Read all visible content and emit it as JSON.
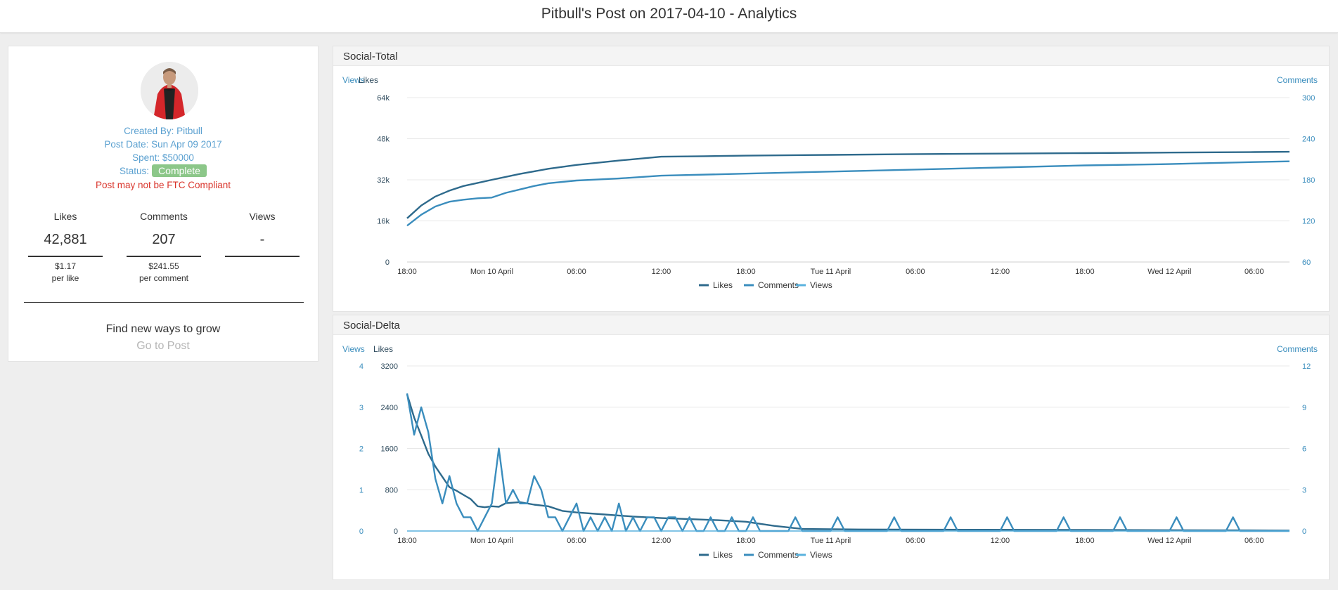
{
  "header": {
    "title": "Pitbull's Post on 2017-04-10 - Analytics"
  },
  "profile": {
    "created_by": "Created By: Pitbull",
    "post_date": "Post Date: Sun Apr 09 2017",
    "spent": "Spent: $50000",
    "status_label": "Status:",
    "status_value": "Complete",
    "ftc_warning": "Post may not be FTC Compliant"
  },
  "stats": [
    {
      "label": "Likes",
      "value": "42,881",
      "cost": "$1.17",
      "per": "per like"
    },
    {
      "label": "Comments",
      "value": "207",
      "cost": "$241.55",
      "per": "per comment"
    },
    {
      "label": "Views",
      "value": "-",
      "cost": "",
      "per": ""
    }
  ],
  "grow": {
    "heading": "Find new ways to grow",
    "link": "Go to Post"
  },
  "colors": {
    "likes": "#2e6a8c",
    "comments": "#3a8dbd",
    "views": "#5ab2de",
    "complete": "#8cc789",
    "warning": "#d9342b"
  },
  "chart_data": [
    {
      "type": "line",
      "title": "Social-Total",
      "axis_titles": {
        "left_primary": "Views",
        "left_secondary": "Likes",
        "right": "Comments"
      },
      "x_ticks": [
        "18:00",
        "Mon 10 April",
        "06:00",
        "12:00",
        "18:00",
        "Tue 11 April",
        "06:00",
        "12:00",
        "18:00",
        "Wed 12 April",
        "06:00"
      ],
      "x_tick_hours": [
        0,
        6,
        12,
        18,
        24,
        30,
        36,
        42,
        48,
        54,
        60
      ],
      "likes_ticks": [
        "0",
        "16k",
        "32k",
        "48k",
        "64k"
      ],
      "likes_range": [
        0,
        64000
      ],
      "comments_ticks": [
        "60",
        "120",
        "180",
        "240",
        "300"
      ],
      "comments_range": [
        60,
        300
      ],
      "legend": [
        "Likes",
        "Comments",
        "Views"
      ],
      "legend_position": "bottom",
      "series": [
        {
          "name": "Likes",
          "axis": "likes",
          "x": [
            0,
            1,
            2,
            3,
            4,
            5,
            6,
            8,
            10,
            12,
            15,
            18,
            21,
            24,
            30,
            36,
            42,
            48,
            54,
            60,
            62.5
          ],
          "values": [
            17000,
            22000,
            25500,
            27800,
            29600,
            30800,
            32000,
            34300,
            36300,
            37800,
            39500,
            41000,
            41200,
            41400,
            41700,
            42000,
            42200,
            42400,
            42600,
            42800,
            42900
          ]
        },
        {
          "name": "Comments",
          "axis": "comments",
          "x": [
            0,
            1,
            2,
            3,
            4,
            5,
            6,
            7,
            8,
            9,
            10,
            12,
            15,
            18,
            24,
            30,
            36,
            42,
            48,
            54,
            60,
            62.5
          ],
          "values": [
            113,
            129,
            141,
            148,
            151,
            153,
            154,
            161,
            166,
            171,
            175,
            179,
            182,
            186,
            189,
            192,
            195,
            198,
            201,
            203,
            206,
            207
          ]
        },
        {
          "name": "Views",
          "axis": "views",
          "x": [],
          "values": []
        }
      ]
    },
    {
      "type": "line",
      "title": "Social-Delta",
      "axis_titles": {
        "left_primary": "Views",
        "left_secondary": "Likes",
        "right": "Comments"
      },
      "x_ticks": [
        "18:00",
        "Mon 10 April",
        "06:00",
        "12:00",
        "18:00",
        "Tue 11 April",
        "06:00",
        "12:00",
        "18:00",
        "Wed 12 April",
        "06:00"
      ],
      "x_tick_hours": [
        0,
        6,
        12,
        18,
        24,
        30,
        36,
        42,
        48,
        54,
        60
      ],
      "views_ticks": [
        "0",
        "1",
        "2",
        "3",
        "4"
      ],
      "views_range": [
        0,
        4
      ],
      "likes_ticks": [
        "0",
        "800",
        "1600",
        "2400",
        "3200"
      ],
      "likes_range": [
        0,
        3200
      ],
      "comments_ticks": [
        "0",
        "3",
        "6",
        "9",
        "12"
      ],
      "comments_range": [
        0,
        12
      ],
      "legend": [
        "Likes",
        "Comments",
        "Views"
      ],
      "legend_position": "bottom",
      "series": [
        {
          "name": "Likes",
          "axis": "likes",
          "x": [
            0,
            0.5,
            1,
            1.5,
            2,
            2.5,
            3,
            3.5,
            4,
            4.5,
            5,
            5.5,
            6,
            6.5,
            7,
            8,
            9,
            10,
            11,
            12,
            14,
            16,
            18,
            20,
            22,
            24,
            26,
            28,
            32,
            40,
            48,
            56,
            62.5
          ],
          "values": [
            2650,
            2200,
            1850,
            1500,
            1250,
            1050,
            850,
            780,
            700,
            620,
            480,
            460,
            480,
            470,
            540,
            560,
            510,
            480,
            390,
            360,
            320,
            280,
            250,
            230,
            210,
            180,
            100,
            40,
            30,
            25,
            20,
            15,
            10
          ]
        },
        {
          "name": "Comments",
          "axis": "comments",
          "x": [
            0,
            0.5,
            1,
            1.5,
            2,
            2.5,
            3,
            3.5,
            4,
            4.5,
            5,
            5.5,
            6,
            6.5,
            7,
            7.5,
            8,
            8.5,
            9,
            9.5,
            10,
            10.5,
            11,
            11.5,
            12,
            12.5,
            13,
            13.5,
            14,
            14.5,
            15,
            15.5,
            16,
            16.5,
            17,
            17.5,
            18,
            18.5,
            19,
            19.5,
            20,
            20.5,
            21,
            21.5,
            22,
            22.5,
            23,
            23.5,
            24,
            24.5,
            25,
            25.5,
            26,
            26.5,
            27,
            27.5,
            28,
            28.5,
            29,
            29.5,
            30,
            30.5,
            31,
            34,
            34.5,
            35,
            38,
            38.5,
            39,
            42,
            42.5,
            43,
            46,
            46.5,
            47,
            50,
            50.5,
            51,
            54,
            54.5,
            55,
            58,
            58.5,
            59,
            62.5
          ],
          "values": [
            10,
            7,
            9,
            7.2,
            3.8,
            2,
            4,
            2,
            1,
            1,
            0,
            1,
            2,
            6,
            2,
            3,
            2,
            2,
            4,
            3,
            1,
            1,
            0,
            1,
            2,
            0,
            1,
            0,
            1,
            0,
            2,
            0,
            1,
            0,
            1,
            1,
            0,
            1,
            1,
            0,
            1,
            0,
            0,
            1,
            0,
            0,
            1,
            0,
            0,
            1,
            0,
            0,
            0,
            0,
            0,
            1,
            0,
            0,
            0,
            0,
            0,
            1,
            0,
            0,
            1,
            0,
            0,
            1,
            0,
            0,
            1,
            0,
            0,
            1,
            0,
            0,
            1,
            0,
            0,
            1,
            0,
            0,
            1,
            0,
            0
          ]
        },
        {
          "name": "Views",
          "axis": "views",
          "x": [
            0,
            62.5
          ],
          "values": [
            0,
            0
          ]
        }
      ]
    }
  ]
}
